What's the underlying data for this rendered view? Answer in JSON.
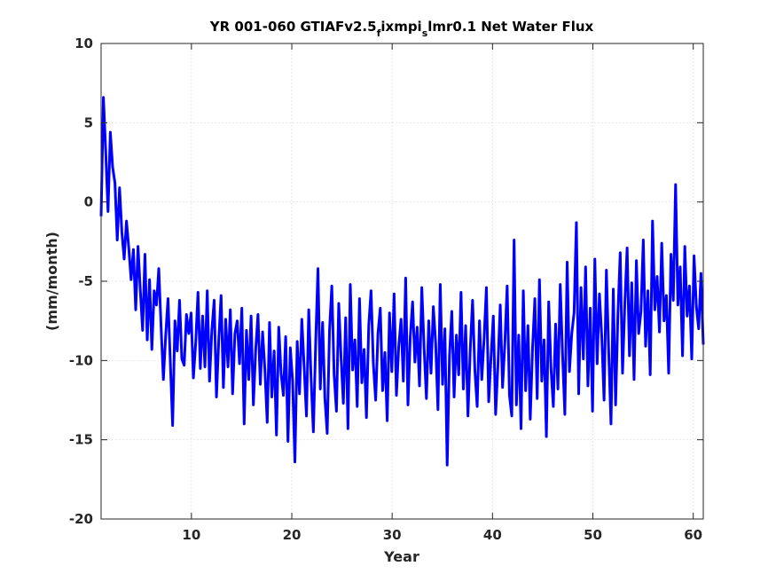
{
  "chart_data": {
    "type": "line",
    "title": {
      "part1": "YR 001-060 GTIAFv2.5",
      "sub1": "f",
      "part2": "ixmpi",
      "sub2": "s",
      "part3": "lmr0.1 Net Water Flux"
    },
    "xlabel": "Year",
    "ylabel": "(mm/month)",
    "xlim": [
      1,
      61
    ],
    "ylim": [
      -20,
      10
    ],
    "xticks": [
      10,
      20,
      30,
      40,
      50,
      60
    ],
    "yticks": [
      10,
      5,
      0,
      -5,
      -10,
      -15,
      -20
    ],
    "grid": true,
    "line_color": "#0000ff",
    "series": [
      {
        "values": [
          -0.9,
          6.6,
          3.2,
          -0.6,
          4.4,
          2.2,
          1.2,
          -2.4,
          0.9,
          -1.9,
          -3.6,
          -1.2,
          -2.9,
          -4.9,
          -3.0,
          -6.8,
          -2.8,
          -5.6,
          -8.1,
          -3.3,
          -8.7,
          -4.9,
          -9.3,
          -5.6,
          -6.5,
          -4.2,
          -7.9,
          -11.2,
          -8.4,
          -6.1,
          -10.1,
          -14.1,
          -7.5,
          -9.4,
          -6.2,
          -9.9,
          -10.3,
          -7.1,
          -8.3,
          -7.0,
          -11.1,
          -8.9,
          -5.7,
          -10.5,
          -7.2,
          -10.4,
          -5.6,
          -11.3,
          -8.1,
          -6.2,
          -12.3,
          -8.7,
          -5.9,
          -11.7,
          -7.4,
          -10.4,
          -6.8,
          -12.1,
          -8.3,
          -7.5,
          -10.2,
          -6.7,
          -14.0,
          -8.1,
          -11.2,
          -7.2,
          -12.8,
          -9.3,
          -7.1,
          -11.5,
          -8.2,
          -10.6,
          -13.9,
          -7.6,
          -12.3,
          -9.4,
          -14.7,
          -7.9,
          -10.8,
          -12.2,
          -8.5,
          -15.1,
          -9.2,
          -11.3,
          -16.4,
          -8.8,
          -12.1,
          -7.4,
          -10.4,
          -13.5,
          -6.8,
          -11.1,
          -14.5,
          -8.9,
          -4.2,
          -11.8,
          -7.6,
          -12.4,
          -14.6,
          -8.1,
          -5.3,
          -10.9,
          -13.2,
          -6.4,
          -9.8,
          -12.7,
          -7.3,
          -14.3,
          -5.2,
          -10.6,
          -8.7,
          -12.9,
          -6.1,
          -11.4,
          -9.3,
          -13.6,
          -7.8,
          -5.6,
          -10.2,
          -12.5,
          -8.3,
          -6.7,
          -11.9,
          -9.5,
          -13.8,
          -7.0,
          -10.7,
          -5.8,
          -12.2,
          -9.1,
          -7.4,
          -11.3,
          -4.8,
          -12.8,
          -8.5,
          -6.3,
          -10.1,
          -7.9,
          -11.6,
          -5.4,
          -9.2,
          -12.4,
          -7.5,
          -10.8,
          -6.6,
          -8.9,
          -13.1,
          -5.2,
          -11.5,
          -8.0,
          -16.6,
          -9.7,
          -6.9,
          -12.3,
          -8.4,
          -10.9,
          -5.7,
          -11.8,
          -7.8,
          -13.5,
          -9.3,
          -6.2,
          -10.6,
          -12.9,
          -7.5,
          -11.2,
          -8.6,
          -5.4,
          -12.6,
          -9.8,
          -7.2,
          -13.4,
          -10.3,
          -6.5,
          -11.7,
          -8.9,
          -5.3,
          -12.2,
          -13.5,
          -2.4,
          -12.8,
          -8.4,
          -14.3,
          -5.6,
          -11.9,
          -7.8,
          -13.7,
          -9.2,
          -6.1,
          -12.4,
          -4.9,
          -11.3,
          -8.7,
          -14.8,
          -6.3,
          -10.5,
          -12.9,
          -7.7,
          -11.8,
          -5.2,
          -9.6,
          -13.4,
          -3.8,
          -10.7,
          -8.3,
          -7.0,
          -1.3,
          -12.1,
          -5.4,
          -9.9,
          -4.1,
          -11.6,
          -6.7,
          -13.2,
          -3.6,
          -10.2,
          -5.8,
          -8.5,
          -12.5,
          -4.3,
          -9.4,
          -14.0,
          -5.5,
          -12.8,
          -7.1,
          -3.2,
          -10.8,
          -6.4,
          -2.9,
          -9.7,
          -5.1,
          -11.2,
          -3.7,
          -8.3,
          -6.9,
          -2.4,
          -9.1,
          -5.6,
          -10.9,
          -1.2,
          -6.8,
          -4.7,
          -8.2,
          -2.6,
          -7.5,
          -5.9,
          -10.8,
          -3.3,
          -6.2,
          1.1,
          -6.5,
          -4.1,
          -9.7,
          -2.8,
          -7.2,
          -5.3,
          -9.9,
          -3.4,
          -6.6,
          -8.0,
          -4.5,
          -9.0
        ]
      }
    ]
  }
}
